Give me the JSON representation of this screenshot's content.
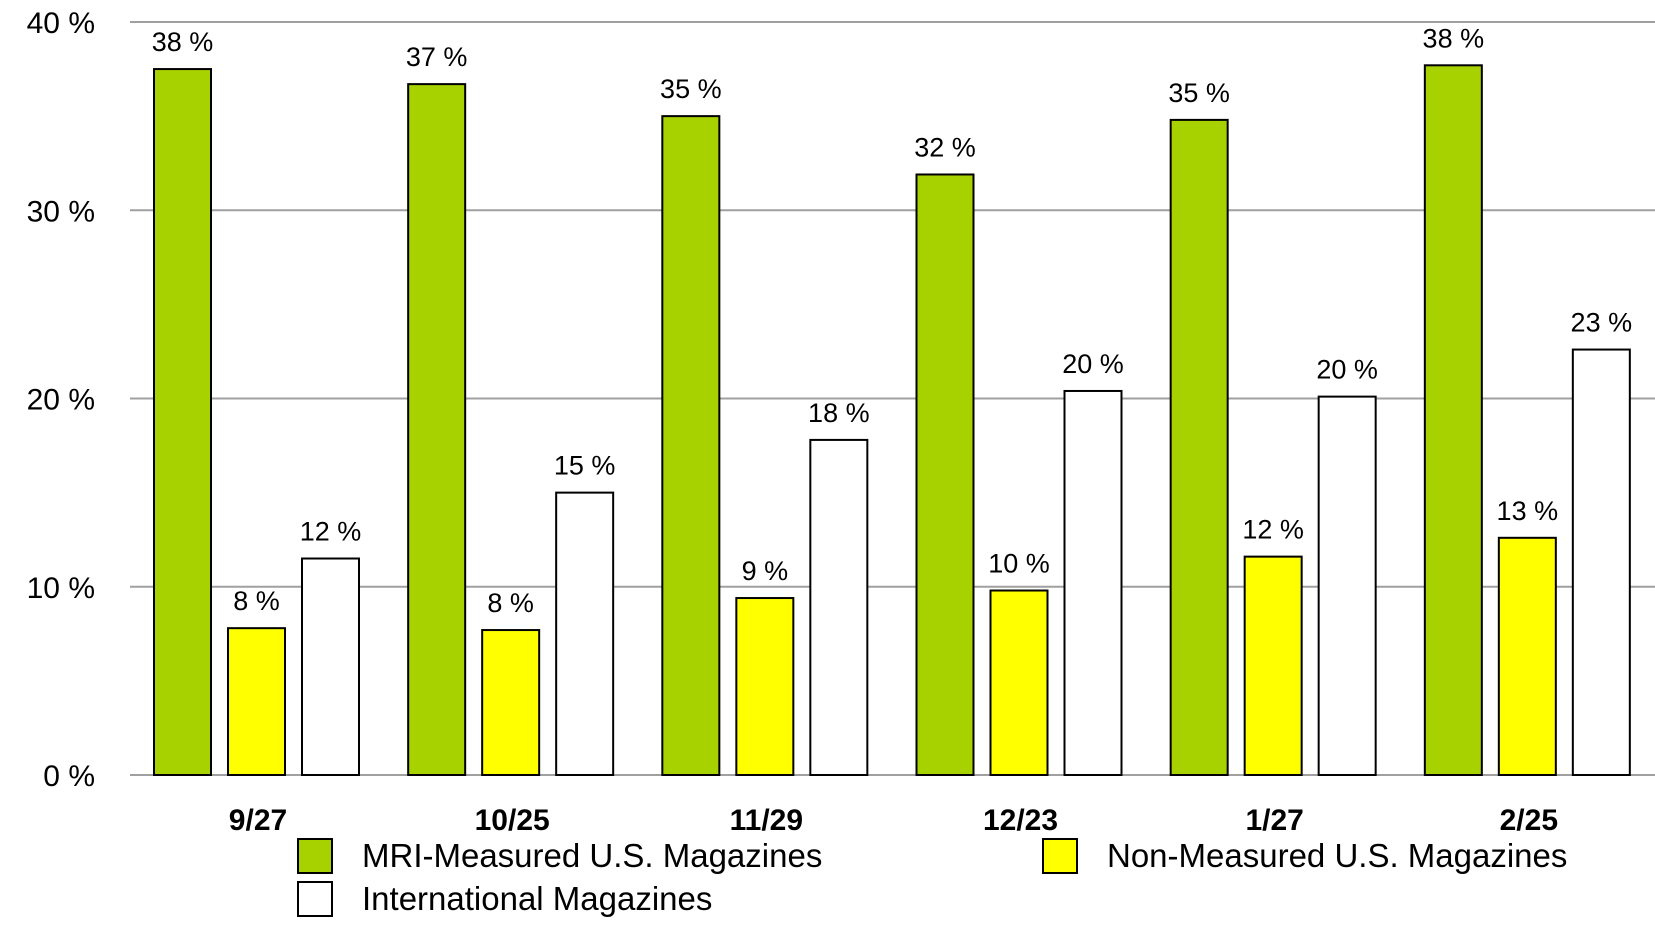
{
  "chart_data": {
    "type": "bar",
    "title": "",
    "xlabel": "",
    "ylabel": "",
    "categories": [
      "9/27",
      "10/25",
      "11/29",
      "12/23",
      "1/27",
      "2/25"
    ],
    "ylim": [
      0,
      40
    ],
    "yticks": [
      0,
      10,
      20,
      30,
      40
    ],
    "ytick_labels": [
      "0 %",
      "10 %",
      "20 %",
      "30 %",
      "40 %"
    ],
    "grid": true,
    "legend_position": "bottom",
    "series": [
      {
        "name": "MRI-Measured U.S. Magazines",
        "color": "#a8d100",
        "values": [
          37.5,
          36.7,
          35.0,
          31.9,
          34.8,
          37.7
        ],
        "labels": [
          "38 %",
          "37 %",
          "35 %",
          "32 %",
          "35 %",
          "38 %"
        ]
      },
      {
        "name": "Non-Measured U.S. Magazines",
        "color": "#ffff00",
        "values": [
          7.8,
          7.7,
          9.4,
          9.8,
          11.6,
          12.6
        ],
        "labels": [
          "8 %",
          "8 %",
          "9 %",
          "10 %",
          "12 %",
          "13 %"
        ]
      },
      {
        "name": "International Magazines",
        "color": "#ffffff",
        "values": [
          11.5,
          15.0,
          17.8,
          20.4,
          20.1,
          22.6
        ],
        "labels": [
          "12 %",
          "15 %",
          "18 %",
          "20 %",
          "20 %",
          "23 %"
        ]
      }
    ]
  }
}
